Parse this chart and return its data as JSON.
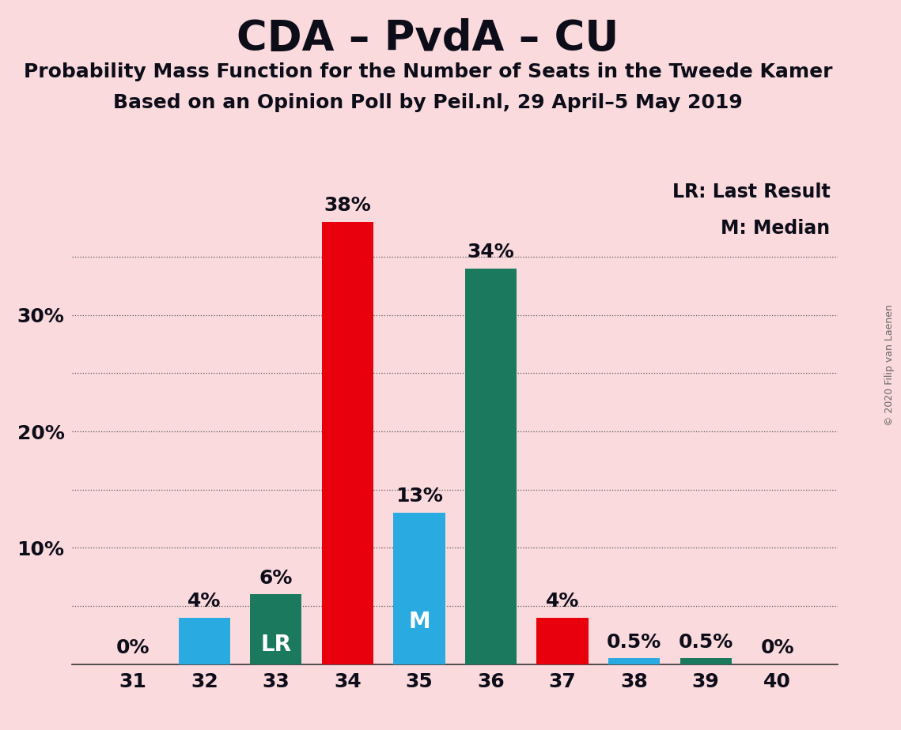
{
  "title": "CDA – PvdA – CU",
  "subtitle1": "Probability Mass Function for the Number of Seats in the Tweede Kamer",
  "subtitle2": "Based on an Opinion Poll by Peil.nl, 29 April–5 May 2019",
  "copyright": "© 2020 Filip van Laenen",
  "categories": [
    31,
    32,
    33,
    34,
    35,
    36,
    37,
    38,
    39,
    40
  ],
  "values": [
    0,
    4,
    6,
    38,
    13,
    34,
    4,
    0.5,
    0.5,
    0
  ],
  "bar_colors": [
    "#29ABE2",
    "#29ABE2",
    "#1B7A5E",
    "#E8000D",
    "#29ABE2",
    "#1B7A5E",
    "#E8000D",
    "#29ABE2",
    "#1B7A5E",
    "#E8000D"
  ],
  "labels": [
    "0%",
    "4%",
    "6%",
    "38%",
    "13%",
    "34%",
    "4%",
    "0.5%",
    "0.5%",
    "0%"
  ],
  "special_labels": {
    "33": "LR",
    "35": "M"
  },
  "background_color": "#FADADD",
  "text_color": "#0d0d1a",
  "legend_text": [
    "LR: Last Result",
    "M: Median"
  ],
  "ylim": [
    0,
    42
  ],
  "yticks": [
    10,
    20,
    30
  ],
  "ytick_labels": [
    "10%",
    "20%",
    "30%"
  ],
  "grid_yticks": [
    5,
    10,
    15,
    20,
    25,
    30,
    35
  ],
  "title_fontsize": 38,
  "subtitle_fontsize": 18,
  "label_fontsize": 18,
  "tick_fontsize": 18,
  "legend_fontsize": 17
}
